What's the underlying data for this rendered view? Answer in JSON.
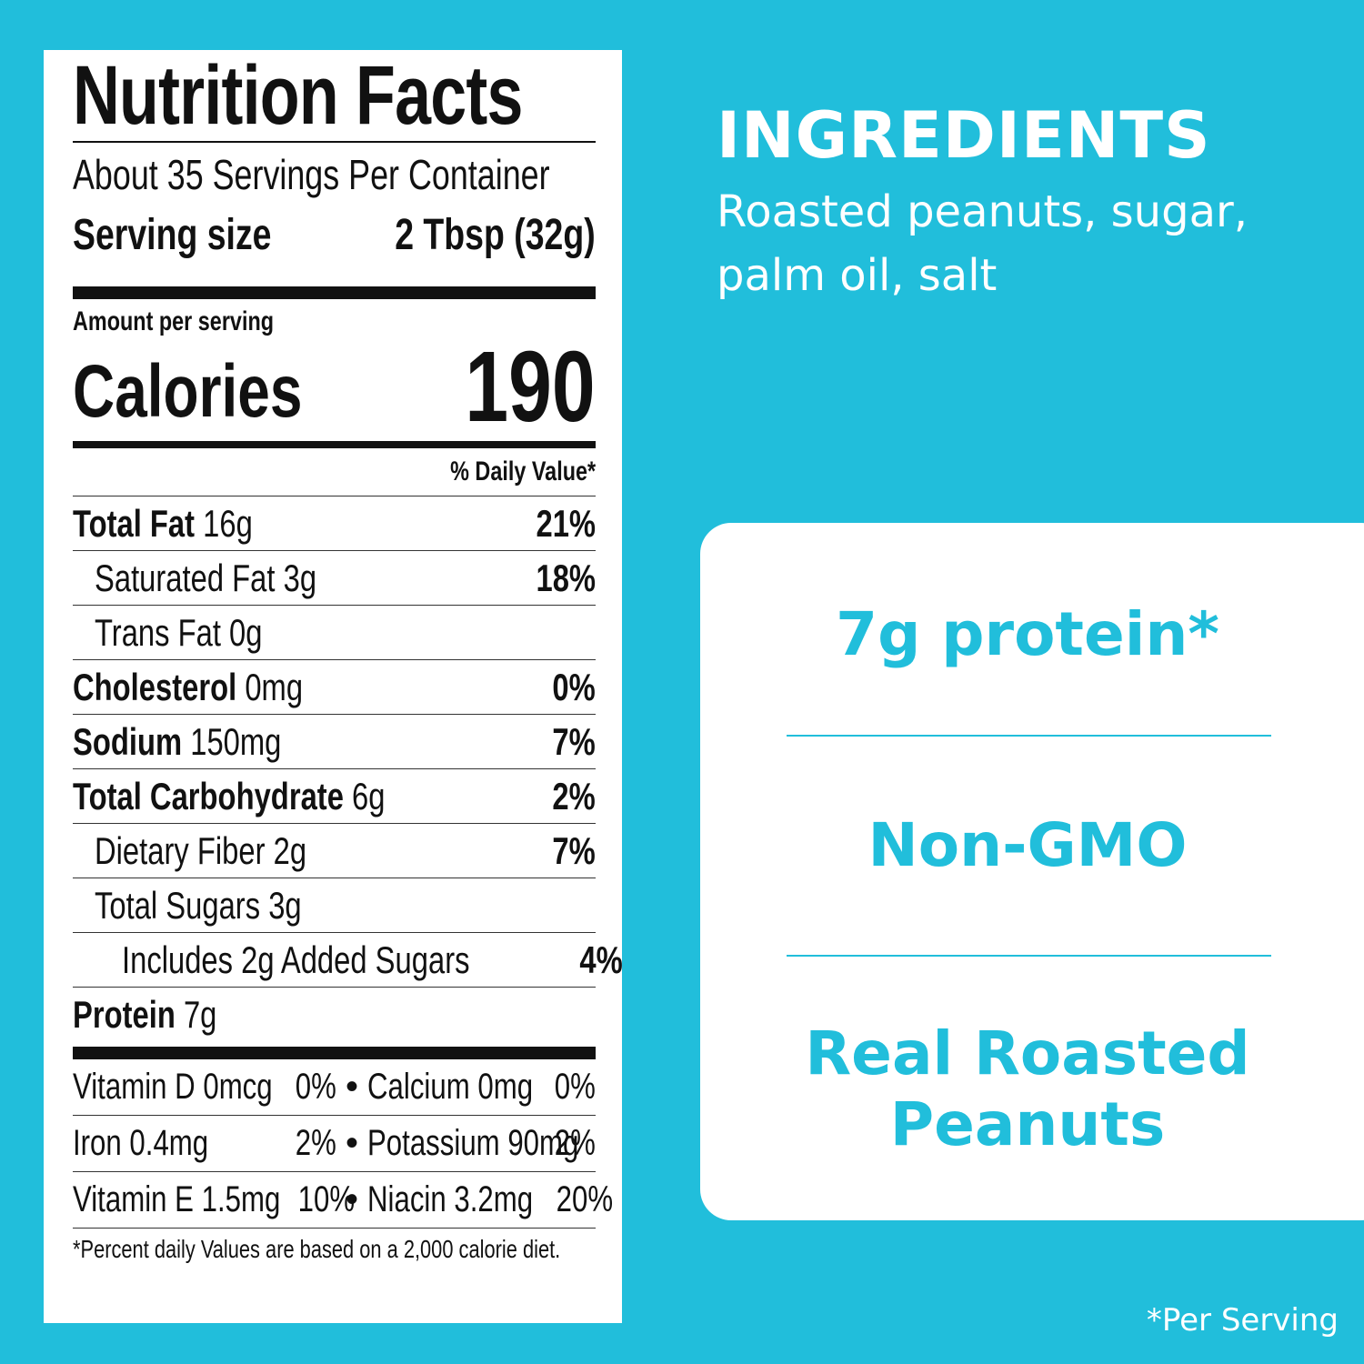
{
  "nutrition": {
    "title": "Nutrition Facts",
    "servings_per_container": "About 35 Servings Per Container",
    "serving_size_label": "Serving size",
    "serving_size_value": "2 Tbsp (32g)",
    "amount_per_serving": "Amount per serving",
    "calories_label": "Calories",
    "calories_value": "190",
    "daily_value_header": "% Daily Value*",
    "rows": [
      {
        "label": "Total Fat",
        "amount": "16g",
        "dv": "21%"
      },
      {
        "label": "Saturated Fat 3g",
        "dv": "18%"
      },
      {
        "label": "Trans Fat 0g",
        "dv": ""
      },
      {
        "label": "Cholesterol",
        "amount": "0mg",
        "dv": "0%"
      },
      {
        "label": "Sodium",
        "amount": "150mg",
        "dv": "7%"
      },
      {
        "label": "Total Carbohydrate",
        "amount": "6g",
        "dv": "2%"
      },
      {
        "label": "Dietary Fiber 2g",
        "dv": "7%"
      },
      {
        "label": "Total Sugars 3g",
        "dv": ""
      },
      {
        "label": "Includes 2g Added Sugars",
        "dv": "4%"
      },
      {
        "label": "Protein",
        "amount": "7g",
        "dv": ""
      }
    ],
    "vitamins": [
      {
        "a": "Vitamin D 0mcg",
        "a_dv": "0%",
        "b": "Calcium 0mg",
        "b_dv": "0%"
      },
      {
        "a": "Iron 0.4mg",
        "a_dv": "2%",
        "b": "Potassium 90mg",
        "b_dv": "2%"
      },
      {
        "a": "Vitamin E 1.5mg",
        "a_dv": "10%",
        "b": "Niacin 3.2mg",
        "b_dv": "20%"
      }
    ],
    "bullet": "•",
    "footnote": "*Percent daily Values are based on a 2,000 calorie diet."
  },
  "ingredients": {
    "title": "INGREDIENTS",
    "line1": "Roasted peanuts, sugar,",
    "line2": "palm oil, salt"
  },
  "claims": {
    "protein": "7g protein*",
    "non_gmo": "Non-GMO",
    "real_line1": "Real Roasted",
    "real_line2": "Peanuts"
  },
  "per_serving_note": "*Per Serving",
  "colors": {
    "background": "#21bedb",
    "panel": "#ffffff",
    "text": "#111111"
  }
}
